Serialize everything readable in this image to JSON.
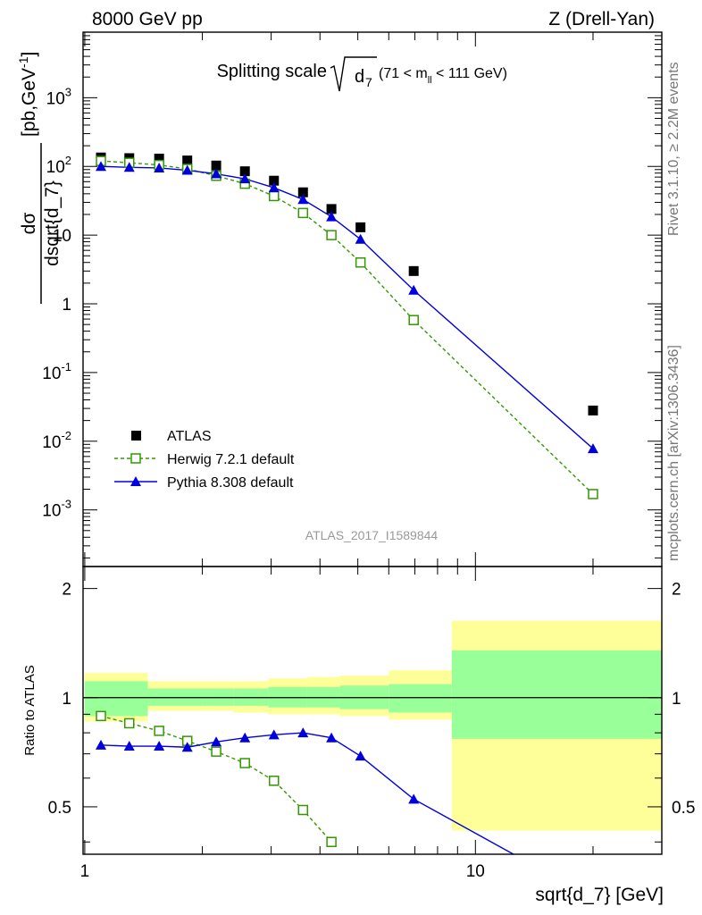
{
  "header": {
    "left": "8000 GeV pp",
    "right": "Z (Drell-Yan)"
  },
  "side_labels": {
    "rivet": "Rivet 3.1.10, ≥ 2.2M events",
    "mcplots": "mcplots.cern.ch [arXiv:1306.3436]"
  },
  "watermark": "ATLAS_2017_I1589844",
  "chart_data": [
    {
      "type": "scatter",
      "panel": "main",
      "title": "Splitting scale √d7 (71 < m_ll < 111 GeV)",
      "title_parts": {
        "main": "Splitting scale",
        "symbol": "d",
        "subscript": "7",
        "range": "(71 < m",
        "range_sub": "ll",
        "range_end": " < 111 GeV)"
      },
      "ylabel_top": "dσ",
      "ylabel_bottom": "dsqrt{d_7}",
      "ylabel_units": "[pb,GeV",
      "ylabel_units_sup": "-1",
      "ylabel_units_end": "]",
      "xscale": "log",
      "yscale": "log",
      "xlim": [
        0.99,
        30
      ],
      "ylim": [
        0.00015,
        9000
      ],
      "yticks": [
        {
          "value": 0.001,
          "base": "10",
          "exp": "-3"
        },
        {
          "value": 0.01,
          "base": "10",
          "exp": "-2"
        },
        {
          "value": 0.1,
          "base": "10",
          "exp": "-1"
        },
        {
          "value": 1,
          "base": "1",
          "exp": ""
        },
        {
          "value": 10,
          "base": "10",
          "exp": ""
        },
        {
          "value": 100,
          "base": "10",
          "exp": "2"
        },
        {
          "value": 1000,
          "base": "10",
          "exp": "3"
        }
      ],
      "legend_position": "bottom-left",
      "series": [
        {
          "name": "ATLAS",
          "color": "#000000",
          "marker": "square",
          "x": [
            1.1,
            1.3,
            1.55,
            1.83,
            2.17,
            2.57,
            3.05,
            3.62,
            4.28,
            5.08,
            6.95,
            20
          ],
          "y": [
            135,
            132,
            130,
            122,
            103,
            85,
            62,
            42,
            24,
            13,
            3.0,
            0.028
          ]
        },
        {
          "name": "Herwig 7.2.1 default",
          "color": "#339900",
          "marker": "open-square",
          "line": "dashed",
          "x": [
            1.1,
            1.3,
            1.55,
            1.83,
            2.17,
            2.57,
            3.05,
            3.62,
            4.28,
            5.08,
            6.95,
            20
          ],
          "y": [
            120,
            113,
            105,
            92,
            73,
            56,
            37,
            21,
            10,
            4.0,
            0.58,
            0.0017
          ]
        },
        {
          "name": "Pythia 8.308 default",
          "color": "#0000dd",
          "marker": "triangle",
          "line": "solid",
          "x": [
            1.1,
            1.3,
            1.55,
            1.83,
            2.17,
            2.57,
            3.05,
            3.62,
            4.28,
            5.08,
            6.95,
            20
          ],
          "y": [
            100,
            97,
            95,
            88,
            78,
            66,
            49,
            33,
            18.5,
            8.7,
            1.58,
            0.0078
          ]
        }
      ]
    },
    {
      "type": "line",
      "panel": "ratio",
      "ylabel": "Ratio to ATLAS",
      "xlabel": "sqrt{d_7} [GeV]",
      "xscale": "log",
      "xlim": [
        0.99,
        30
      ],
      "ylim": [
        0.37,
        2.3
      ],
      "yticks": [
        0.5,
        1,
        2
      ],
      "xticks": [
        1,
        10
      ],
      "reference": 1,
      "bands": {
        "edges": [
          1.0,
          1.45,
          2.0,
          2.4,
          2.95,
          3.7,
          4.5,
          6.0,
          8.7,
          30
        ],
        "inner": [
          [
            0.89,
            1.11
          ],
          [
            0.95,
            1.06
          ],
          [
            0.95,
            1.06
          ],
          [
            0.95,
            1.06
          ],
          [
            0.94,
            1.07
          ],
          [
            0.94,
            1.07
          ],
          [
            0.93,
            1.08
          ],
          [
            0.91,
            1.09
          ],
          [
            0.77,
            1.35
          ]
        ],
        "outer": [
          [
            0.86,
            1.17
          ],
          [
            0.92,
            1.11
          ],
          [
            0.92,
            1.11
          ],
          [
            0.91,
            1.11
          ],
          [
            0.9,
            1.13
          ],
          [
            0.9,
            1.14
          ],
          [
            0.89,
            1.15
          ],
          [
            0.87,
            1.19
          ],
          [
            0.43,
            1.63
          ]
        ],
        "inner_color": "#99ff99",
        "outer_color": "#ffff99"
      },
      "series": [
        {
          "name": "Herwig 7.2.1 default",
          "color": "#339900",
          "marker": "open-square",
          "line": "dashed",
          "x": [
            1.1,
            1.3,
            1.55,
            1.83,
            2.17,
            2.57,
            3.05,
            3.62,
            4.28
          ],
          "y": [
            0.89,
            0.85,
            0.81,
            0.76,
            0.71,
            0.66,
            0.59,
            0.49,
            0.4
          ]
        },
        {
          "name": "Pythia 8.308 default",
          "color": "#0000dd",
          "marker": "triangle",
          "line": "solid",
          "x": [
            1.1,
            1.3,
            1.55,
            1.83,
            2.17,
            2.57,
            3.05,
            3.62,
            4.28,
            5.08,
            6.95,
            20
          ],
          "y": [
            0.74,
            0.735,
            0.735,
            0.73,
            0.755,
            0.775,
            0.79,
            0.8,
            0.775,
            0.69,
            0.525,
            0.28
          ]
        }
      ]
    }
  ]
}
